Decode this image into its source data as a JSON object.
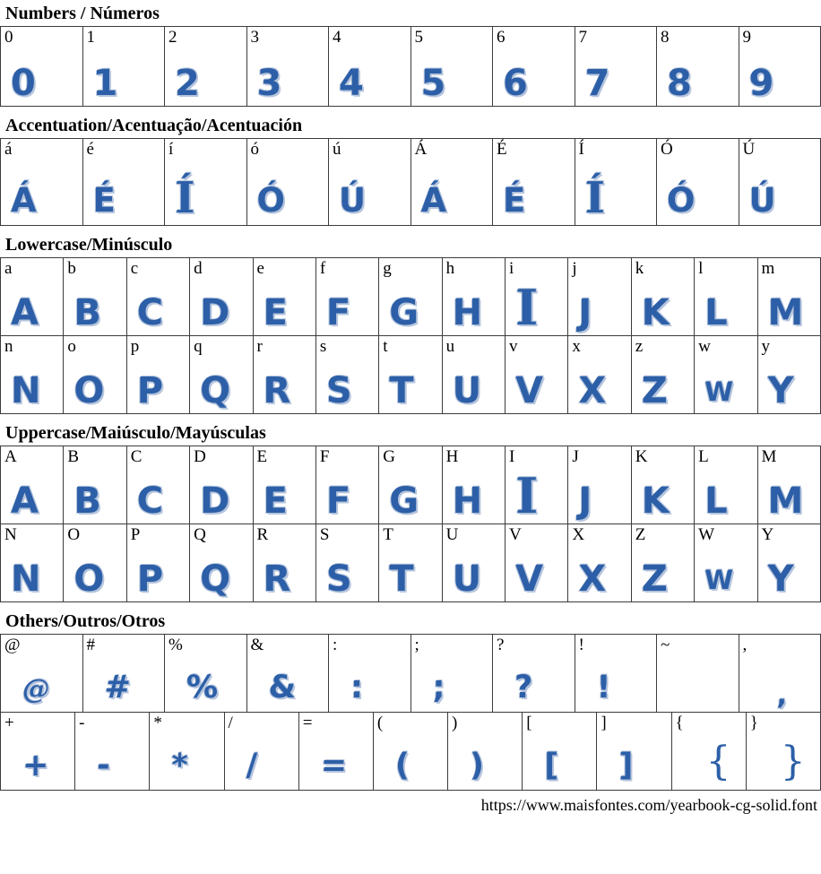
{
  "colors": {
    "glyph": "#2c5fa7",
    "glyph_halo": "#b6c5dd",
    "border": "#3c3c3c"
  },
  "footer": {
    "url": "https://www.maisfontes.com/yearbook-cg-solid.font"
  },
  "sections": [
    {
      "kind": "numbers",
      "title": "Numbers / Números",
      "tables": [
        {
          "rows": [
            [
              {
                "c": "0",
                "g": "0"
              },
              {
                "c": "1",
                "g": "1"
              },
              {
                "c": "2",
                "g": "2"
              },
              {
                "c": "3",
                "g": "3"
              },
              {
                "c": "4",
                "g": "4"
              },
              {
                "c": "5",
                "g": "5"
              },
              {
                "c": "6",
                "g": "6"
              },
              {
                "c": "7",
                "g": "7"
              },
              {
                "c": "8",
                "g": "8"
              },
              {
                "c": "9",
                "g": "9"
              }
            ]
          ]
        }
      ]
    },
    {
      "kind": "accents",
      "title": "Accentuation/Acentuação/Acentuación",
      "tables": [
        {
          "rows": [
            [
              {
                "c": "á",
                "g": "Á"
              },
              {
                "c": "é",
                "g": "É"
              },
              {
                "c": "í",
                "g": "Í",
                "v": "lg"
              },
              {
                "c": "ó",
                "g": "Ó"
              },
              {
                "c": "ú",
                "g": "Ú"
              },
              {
                "c": "Á",
                "g": "Á"
              },
              {
                "c": "É",
                "g": "É"
              },
              {
                "c": "Í",
                "g": "Í",
                "v": "lg"
              },
              {
                "c": "Ó",
                "g": "Ó"
              },
              {
                "c": "Ú",
                "g": "Ú"
              }
            ]
          ]
        }
      ]
    },
    {
      "kind": "lowercase",
      "title": "Lowercase/Minúsculo",
      "tables": [
        {
          "rows": [
            [
              {
                "c": "a",
                "g": "A"
              },
              {
                "c": "b",
                "g": "B"
              },
              {
                "c": "c",
                "g": "C"
              },
              {
                "c": "d",
                "g": "D"
              },
              {
                "c": "e",
                "g": "E"
              },
              {
                "c": "f",
                "g": "F"
              },
              {
                "c": "g",
                "g": "G"
              },
              {
                "c": "h",
                "g": "H"
              },
              {
                "c": "i",
                "g": "I",
                "v": "lg"
              },
              {
                "c": "j",
                "g": "J"
              },
              {
                "c": "k",
                "g": "K"
              },
              {
                "c": "l",
                "g": "L"
              },
              {
                "c": "m",
                "g": "M"
              }
            ],
            [
              {
                "c": "n",
                "g": "N"
              },
              {
                "c": "o",
                "g": "O"
              },
              {
                "c": "p",
                "g": "P"
              },
              {
                "c": "q",
                "g": "Q"
              },
              {
                "c": "r",
                "g": "R"
              },
              {
                "c": "s",
                "g": "S"
              },
              {
                "c": "t",
                "g": "T"
              },
              {
                "c": "u",
                "g": "U"
              },
              {
                "c": "v",
                "g": "V"
              },
              {
                "c": "x",
                "g": "X"
              },
              {
                "c": "z",
                "g": "Z"
              },
              {
                "c": "w",
                "g": "W",
                "v": "sm"
              },
              {
                "c": "y",
                "g": "Y"
              }
            ]
          ]
        }
      ]
    },
    {
      "kind": "uppercase",
      "title": "Uppercase/Maiúsculo/Mayúsculas",
      "tables": [
        {
          "rows": [
            [
              {
                "c": "A",
                "g": "A"
              },
              {
                "c": "B",
                "g": "B"
              },
              {
                "c": "C",
                "g": "C"
              },
              {
                "c": "D",
                "g": "D"
              },
              {
                "c": "E",
                "g": "E"
              },
              {
                "c": "F",
                "g": "F"
              },
              {
                "c": "G",
                "g": "G"
              },
              {
                "c": "H",
                "g": "H"
              },
              {
                "c": "I",
                "g": "I",
                "v": "lg"
              },
              {
                "c": "J",
                "g": "J"
              },
              {
                "c": "K",
                "g": "K"
              },
              {
                "c": "L",
                "g": "L"
              },
              {
                "c": "M",
                "g": "M"
              }
            ],
            [
              {
                "c": "N",
                "g": "N"
              },
              {
                "c": "O",
                "g": "O"
              },
              {
                "c": "P",
                "g": "P"
              },
              {
                "c": "Q",
                "g": "Q"
              },
              {
                "c": "R",
                "g": "R"
              },
              {
                "c": "S",
                "g": "S"
              },
              {
                "c": "T",
                "g": "T"
              },
              {
                "c": "U",
                "g": "U"
              },
              {
                "c": "V",
                "g": "V"
              },
              {
                "c": "X",
                "g": "X"
              },
              {
                "c": "Z",
                "g": "Z"
              },
              {
                "c": "W",
                "g": "W",
                "v": "sm"
              },
              {
                "c": "Y",
                "g": "Y"
              }
            ]
          ]
        }
      ]
    },
    {
      "kind": "others",
      "title": "Others/Outros/Otros",
      "tables": [
        {
          "rows": [
            [
              {
                "c": "@",
                "g": "@",
                "v": "at"
              },
              {
                "c": "#",
                "g": "#"
              },
              {
                "c": "%",
                "g": "%"
              },
              {
                "c": "&",
                "g": "&"
              },
              {
                "c": ":",
                "g": ":"
              },
              {
                "c": ";",
                "g": ";"
              },
              {
                "c": "?",
                "g": "?"
              },
              {
                "c": "!",
                "g": "!"
              },
              {
                "c": "~",
                "g": ""
              },
              {
                "c": ",",
                "g": ",",
                "v": "cm"
              }
            ]
          ]
        },
        {
          "rows": [
            [
              {
                "c": "+",
                "g": "+"
              },
              {
                "c": "-",
                "g": "-"
              },
              {
                "c": "*",
                "g": "*"
              },
              {
                "c": "/",
                "g": "/"
              },
              {
                "c": "=",
                "g": "="
              },
              {
                "c": "(",
                "g": "("
              },
              {
                "c": ")",
                "g": ")"
              },
              {
                "c": "[",
                "g": "["
              },
              {
                "c": "]",
                "g": "]"
              },
              {
                "c": "{",
                "g": "{",
                "v": "br"
              },
              {
                "c": "}",
                "g": "}",
                "v": "br"
              }
            ]
          ]
        }
      ]
    }
  ]
}
